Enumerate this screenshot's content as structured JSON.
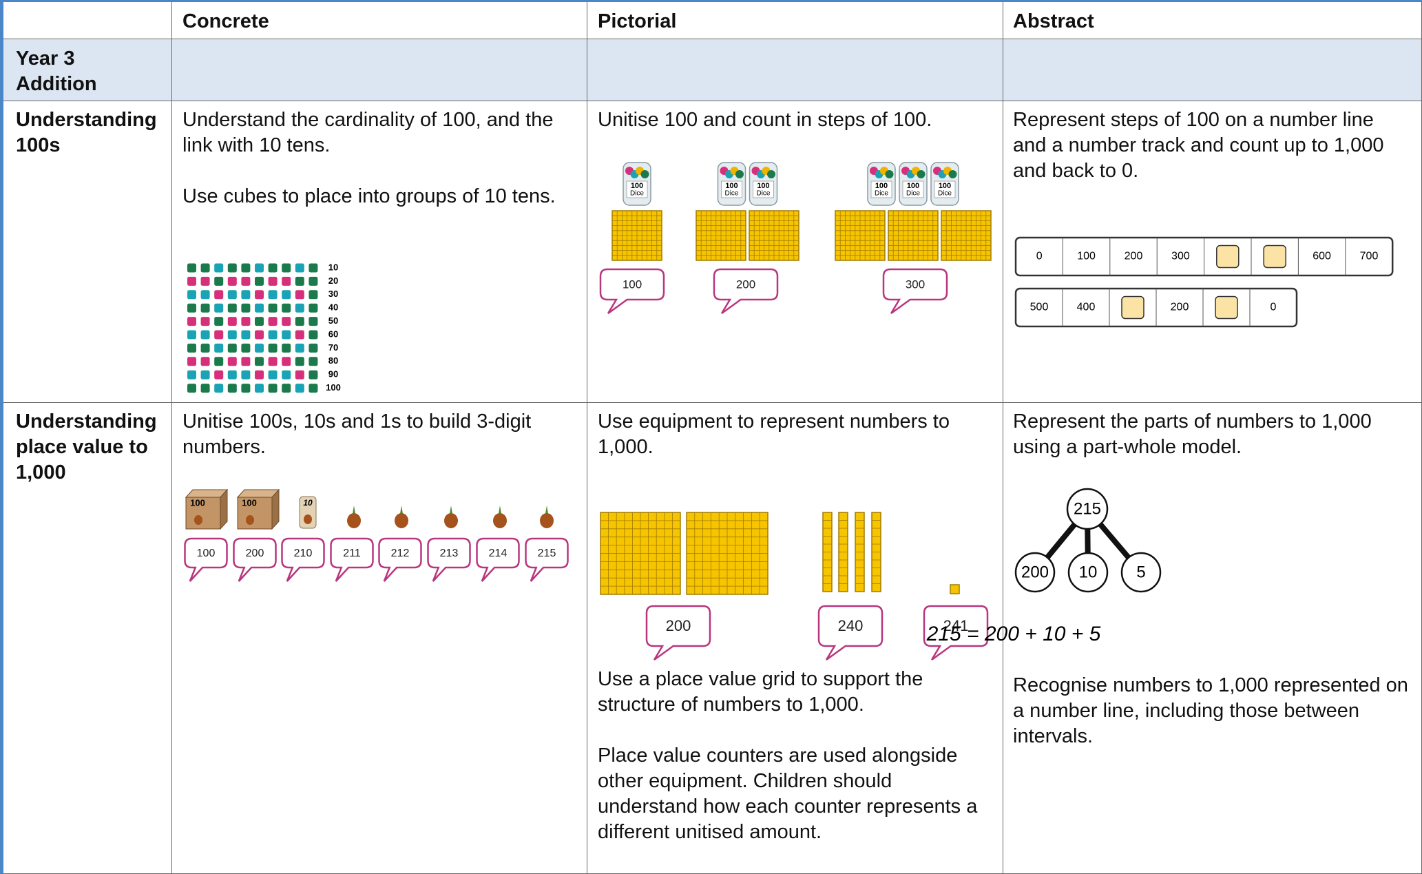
{
  "table": {
    "header": [
      "Concrete",
      "Pictorial",
      "Abstract"
    ],
    "section": [
      "Year 3",
      "Addition"
    ],
    "rows": [
      {
        "label": "Understanding 100s",
        "concrete": {
          "text": [
            "Understand the cardinality of 100, and the link with 10 tens.",
            "Use cubes to place into groups of 10 tens."
          ],
          "cube_labels": [
            10,
            20,
            30,
            40,
            50,
            60,
            70,
            80,
            90,
            100
          ]
        },
        "pictorial": {
          "text": [
            "Unitise 100 and count in steps of 100."
          ],
          "jar_label": [
            "100",
            "Dice"
          ],
          "bubbles": [
            100,
            200,
            300
          ]
        },
        "abstract": {
          "text": [
            "Represent steps of 100 on a number line and a number track and count up to 1,000 and back to 0."
          ],
          "tracks": [
            [
              0,
              100,
              200,
              300,
              null,
              null,
              600,
              700
            ],
            [
              500,
              400,
              null,
              200,
              null,
              0
            ]
          ]
        }
      },
      {
        "label": "Understanding place value to 1,000",
        "concrete": {
          "text": [
            "Unitise 100s, 10s and 1s to build 3-digit numbers."
          ],
          "block_labels": [
            100,
            100,
            10
          ],
          "bubbles": [
            100,
            200,
            210,
            211,
            212,
            213,
            214,
            215
          ]
        },
        "pictorial": {
          "text": [
            "Use equipment to represent numbers to 1,000.",
            "Use a place value grid to support the structure of numbers to 1,000.",
            "Place value counters are used alongside other equipment. Children should understand how each counter represents a different unitised amount."
          ],
          "bubbles": [
            200,
            240,
            241
          ]
        },
        "abstract": {
          "text": [
            "Represent the parts of numbers to 1,000 using a part-whole model.",
            "Recognise numbers to 1,000 represented on a number line, including those between intervals."
          ],
          "whole": 215,
          "parts": [
            200,
            10,
            5
          ],
          "equation": "215 = 200 + 10 + 5"
        }
      }
    ]
  }
}
